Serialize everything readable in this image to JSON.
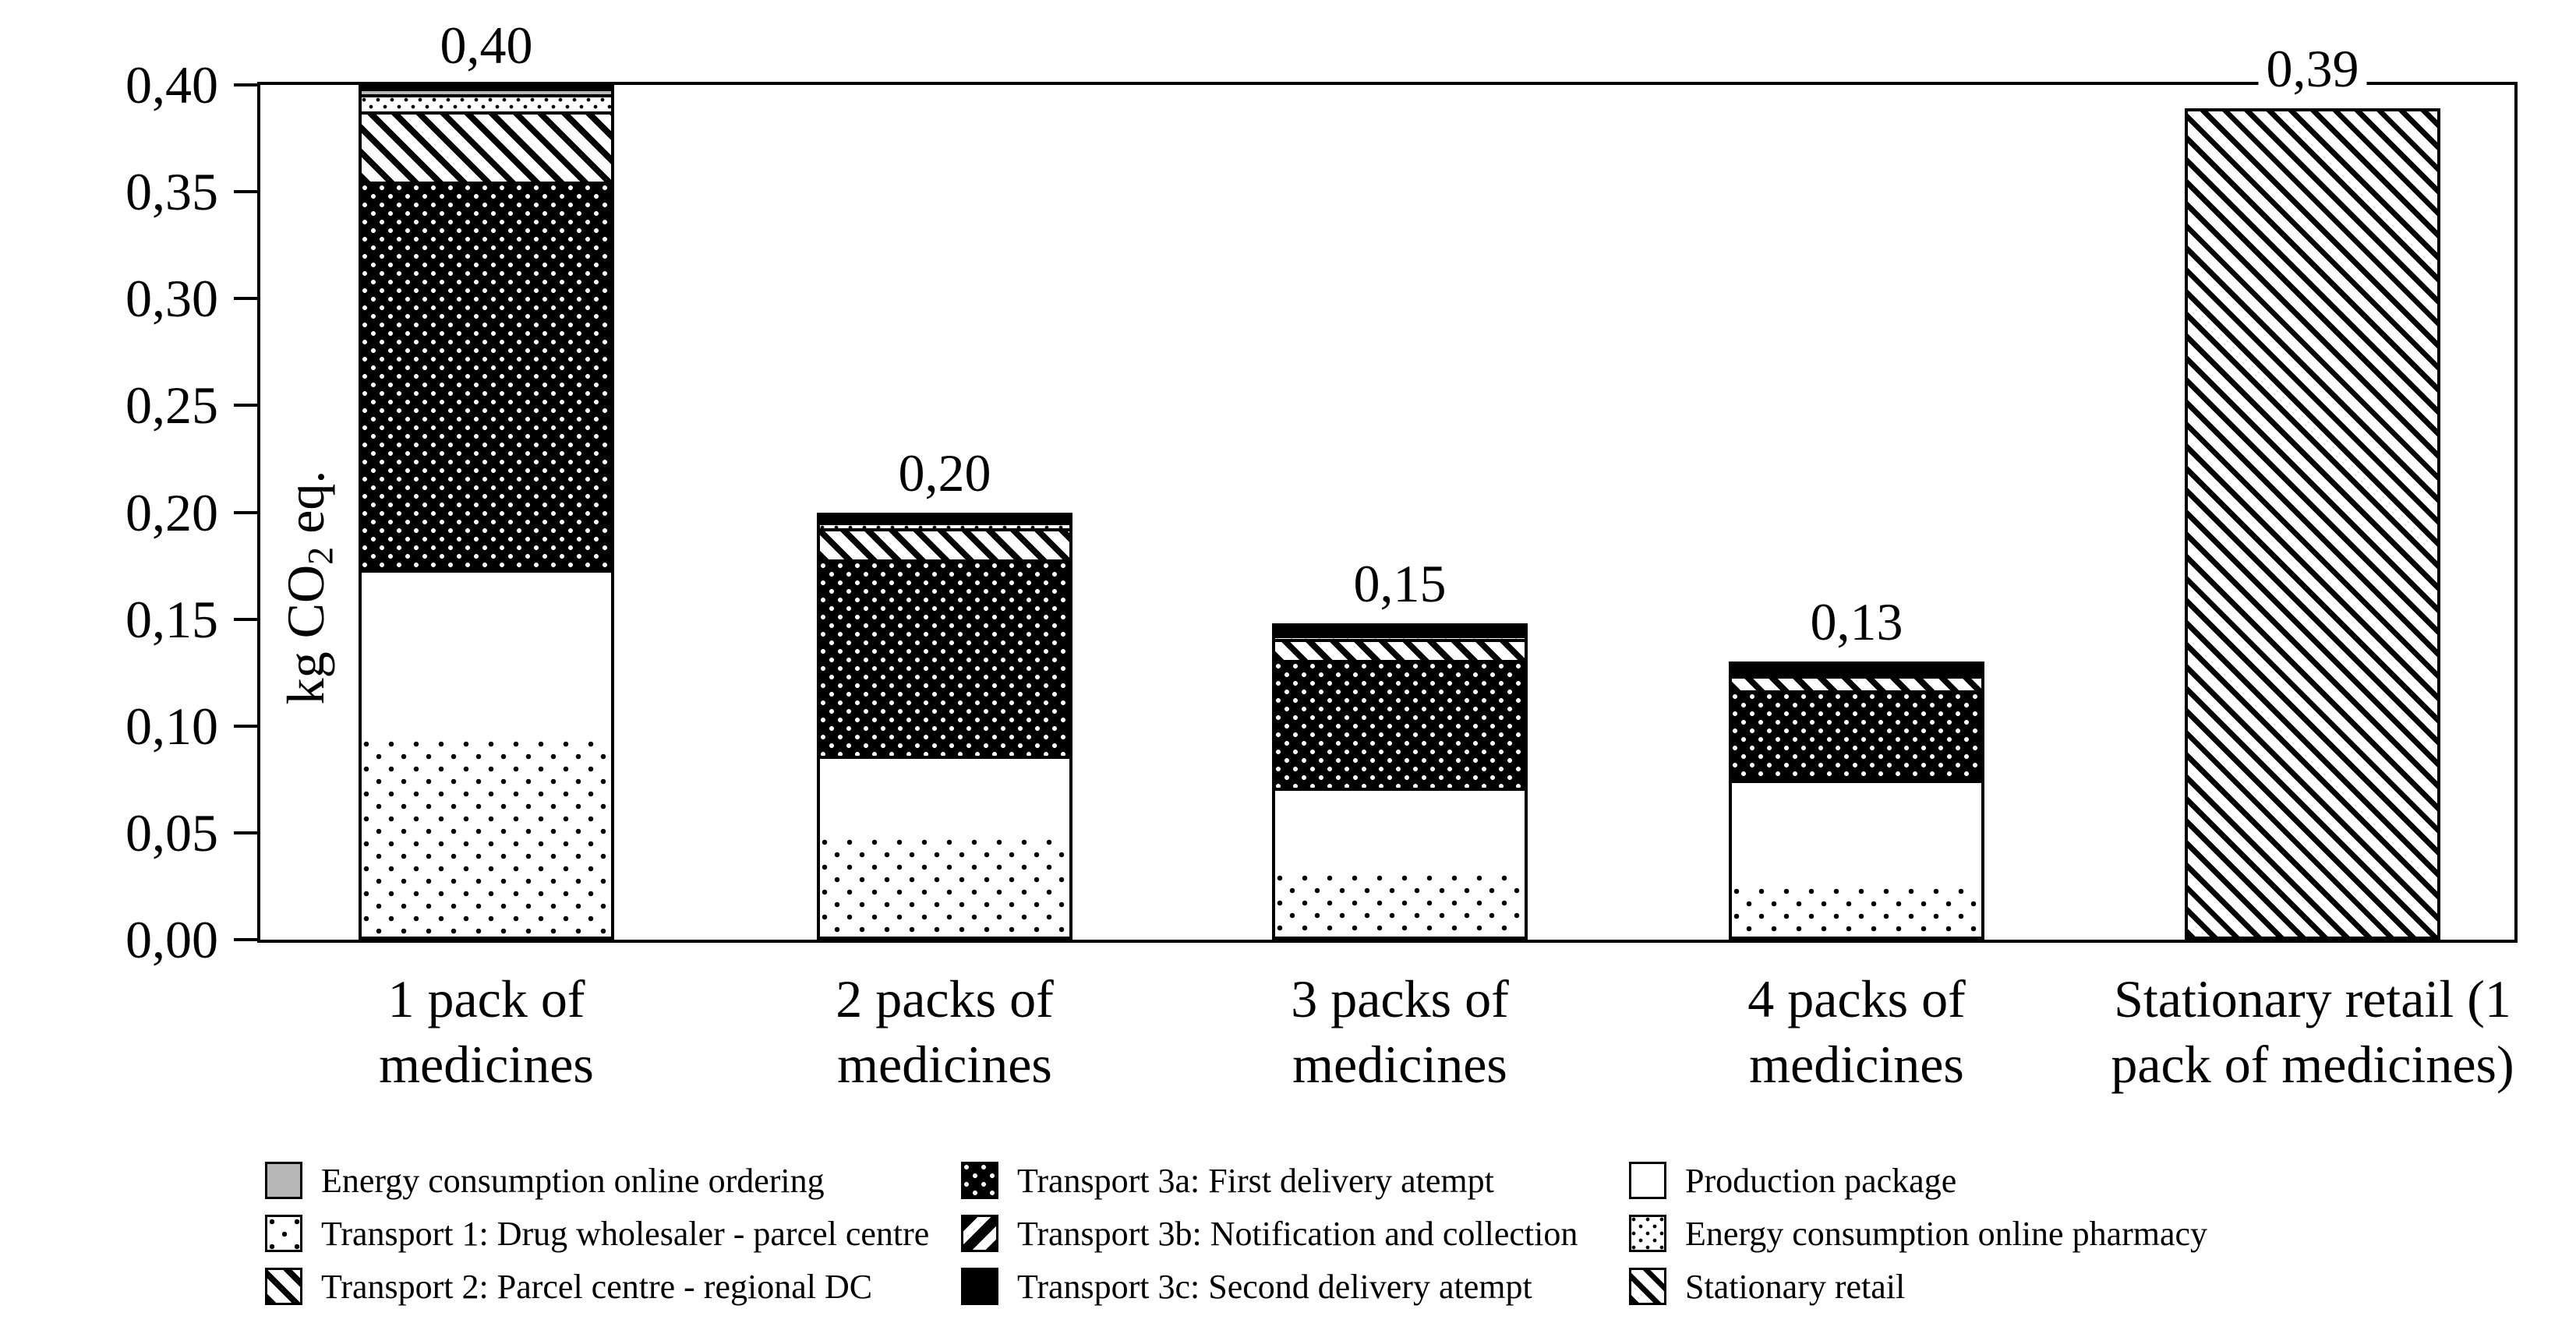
{
  "page": {
    "background": "#ffffff"
  },
  "chart_data": {
    "type": "bar",
    "stacked": true,
    "title": "",
    "ylabel_parts": {
      "prefix": "kg CO",
      "sub": "2",
      "suffix": " eq."
    },
    "ylim": [
      0,
      0.4
    ],
    "grid": false,
    "legend_position": "bottom",
    "decimal_separator": ",",
    "yticks": [
      {
        "v": 0.0,
        "label": "0,00"
      },
      {
        "v": 0.05,
        "label": "0,05"
      },
      {
        "v": 0.1,
        "label": "0,10"
      },
      {
        "v": 0.15,
        "label": "0,15"
      },
      {
        "v": 0.2,
        "label": "0,20"
      },
      {
        "v": 0.25,
        "label": "0,25"
      },
      {
        "v": 0.3,
        "label": "0,30"
      },
      {
        "v": 0.35,
        "label": "0,35"
      },
      {
        "v": 0.4,
        "label": "0,40"
      }
    ],
    "categories": [
      {
        "lines": [
          "1 pack of",
          "medicines"
        ]
      },
      {
        "lines": [
          "2 packs of",
          "medicines"
        ]
      },
      {
        "lines": [
          "3 packs of",
          "medicines"
        ]
      },
      {
        "lines": [
          "4 packs of",
          "medicines"
        ]
      },
      {
        "lines": [
          "Stationary retail (1",
          "pack of medicines)"
        ]
      }
    ],
    "totals": [
      0.4,
      0.2,
      0.148,
      0.13,
      0.389
    ],
    "total_labels": [
      "0,40",
      "0,20",
      "0,15",
      "0,13",
      "0,39"
    ],
    "stack_order": [
      "t1",
      "production",
      "t3a",
      "t3b",
      "t2",
      "pharmacy",
      "ordering",
      "t3c",
      "stationary"
    ],
    "series": [
      {
        "id": "ordering",
        "name": "Energy consumption online ordering",
        "pattern": "solid-gray",
        "color": "#b8b8b8",
        "values": [
          0.003,
          0,
          0,
          0,
          0
        ]
      },
      {
        "id": "t1",
        "name": "Transport 1: Drug wholesaler - parcel centre",
        "pattern": "dots-sparse",
        "color": "#000000",
        "values": [
          0.093,
          0.047,
          0.03,
          0.024,
          0
        ]
      },
      {
        "id": "t2",
        "name": "Transport 2: Parcel centre - regional DC",
        "pattern": "hatch-back",
        "color": "#000000",
        "values": [
          0.033,
          0.015,
          0.01,
          0.007,
          0
        ]
      },
      {
        "id": "t3a",
        "name": "Transport 3a: First delivery atempt",
        "pattern": "dots-dense-inverse",
        "color": "#000000",
        "values": [
          0.183,
          0.093,
          0.061,
          0.043,
          0
        ]
      },
      {
        "id": "t3b",
        "name": "Transport 3b: Notification and collection",
        "pattern": "stripes-forward",
        "color": "#000000",
        "values": [
          0,
          0,
          0,
          0,
          0
        ]
      },
      {
        "id": "t3c",
        "name": "Transport 3c: Second delivery atempt",
        "pattern": "solid-black",
        "color": "#000000",
        "values": [
          0,
          0.003,
          0.004,
          0.005,
          0
        ]
      },
      {
        "id": "production",
        "name": "Production package",
        "pattern": "solid-white",
        "color": "#ffffff",
        "values": [
          0.08,
          0.039,
          0.041,
          0.051,
          0
        ]
      },
      {
        "id": "pharmacy",
        "name": "Energy consumption online pharmacy",
        "pattern": "dots-fine",
        "color": "#000000",
        "values": [
          0.008,
          0.003,
          0.002,
          0,
          0
        ]
      },
      {
        "id": "stationary",
        "name": "Stationary retail",
        "pattern": "hatch-back-light",
        "color": "#000000",
        "values": [
          0,
          0,
          0,
          0,
          0.389
        ]
      }
    ],
    "legend_columns": [
      [
        "ordering",
        "t1",
        "t2"
      ],
      [
        "t3a",
        "t3b",
        "t3c"
      ],
      [
        "production",
        "pharmacy",
        "stationary"
      ]
    ]
  }
}
